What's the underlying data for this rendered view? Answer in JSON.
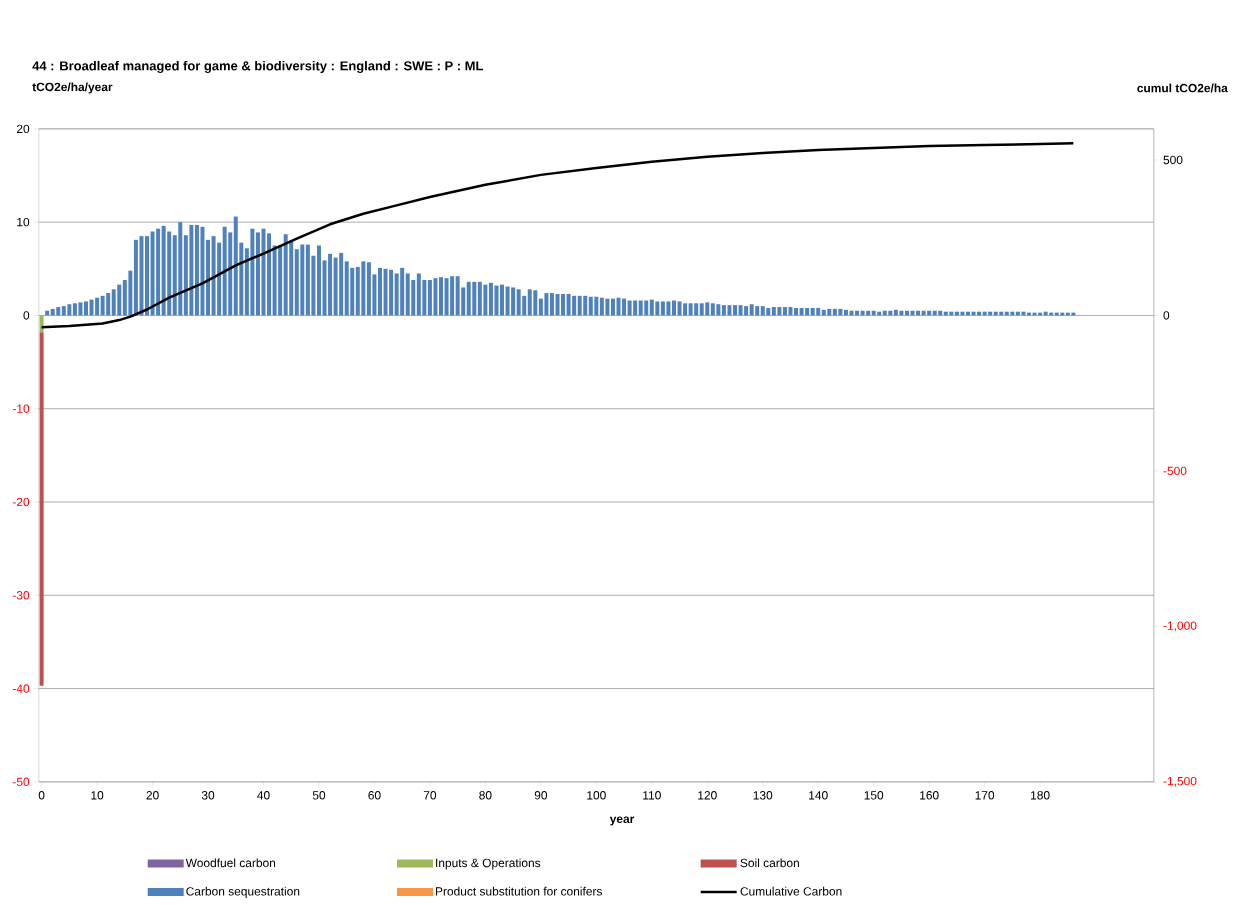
{
  "chart_data": {
    "type": "bar",
    "title": "44 : Broadleaf managed for game & biodiversity : England : SWE : P : ML",
    "xlabel": "year",
    "ylabel": "tCO2e/ha/year",
    "y2label": "cumul   tCO2e/ha",
    "xlim": [
      -0.5,
      200.5
    ],
    "xticks": [
      0,
      10,
      20,
      30,
      40,
      50,
      60,
      70,
      80,
      90,
      100,
      110,
      120,
      130,
      140,
      150,
      160,
      170,
      180
    ],
    "ylim": [
      -50,
      20
    ],
    "yticks": [
      -50,
      -40,
      -30,
      -20,
      -10,
      0,
      10,
      20
    ],
    "y2lim": [
      -1500,
      600
    ],
    "y2ticks": [
      {
        "value": -1500,
        "label": "-1,500"
      },
      {
        "value": -1000,
        "label": "-1,000"
      },
      -500,
      0,
      500
    ],
    "stacked": true,
    "grid": "y",
    "legend": "bottom",
    "series": [
      {
        "name": "Woodfuel carbon",
        "color": "#8064a2",
        "x": [
          0
        ],
        "values": [
          0
        ]
      },
      {
        "name": "Inputs & Operations",
        "color": "#9bbb59",
        "x": [
          0
        ],
        "values": [
          -1.8
        ]
      },
      {
        "name": "Soil carbon",
        "color": "#c0504d",
        "x": [
          0
        ],
        "values": [
          -37.9
        ]
      },
      {
        "name": "Carbon sequestration",
        "color": "#4f81bd",
        "x": [
          1,
          2,
          3,
          4,
          5,
          6,
          7,
          8,
          9,
          10,
          11,
          12,
          13,
          14,
          15,
          16,
          17,
          18,
          19,
          20,
          21,
          22,
          23,
          24,
          25,
          26,
          27,
          28,
          29,
          30,
          31,
          32,
          33,
          34,
          35,
          36,
          37,
          38,
          39,
          40,
          41,
          42,
          43,
          44,
          45,
          46,
          47,
          48,
          49,
          50,
          51,
          52,
          53,
          54,
          55,
          56,
          57,
          58,
          59,
          60,
          61,
          62,
          63,
          64,
          65,
          66,
          67,
          68,
          69,
          70,
          71,
          72,
          73,
          74,
          75,
          76,
          77,
          78,
          79,
          80,
          81,
          82,
          83,
          84,
          85,
          86,
          87,
          88,
          89,
          90,
          91,
          92,
          93,
          94,
          95,
          96,
          97,
          98,
          99,
          100,
          101,
          102,
          103,
          104,
          105,
          106,
          107,
          108,
          109,
          110,
          111,
          112,
          113,
          114,
          115,
          116,
          117,
          118,
          119,
          120,
          121,
          122,
          123,
          124,
          125,
          126,
          127,
          128,
          129,
          130,
          131,
          132,
          133,
          134,
          135,
          136,
          137,
          138,
          139,
          140,
          141,
          142,
          143,
          144,
          145,
          146,
          147,
          148,
          149,
          150,
          151,
          152,
          153,
          154,
          155,
          156,
          157,
          158,
          159,
          160,
          161,
          162,
          163,
          164,
          165,
          166,
          167,
          168,
          169,
          170,
          171,
          172,
          173,
          174,
          175,
          176,
          177,
          178,
          179,
          180,
          181,
          182,
          183,
          184,
          185,
          186
        ],
        "values": [
          0.5,
          0.7,
          0.9,
          1.0,
          1.2,
          1.3,
          1.4,
          1.5,
          1.7,
          1.9,
          2.1,
          2.4,
          2.8,
          3.3,
          3.8,
          4.8,
          8.1,
          8.5,
          8.5,
          9.0,
          9.3,
          9.6,
          9.0,
          8.6,
          10.0,
          8.6,
          9.7,
          9.7,
          9.5,
          8.1,
          8.5,
          7.8,
          9.5,
          8.9,
          10.6,
          7.8,
          7.2,
          9.3,
          8.9,
          9.3,
          8.8,
          7.5,
          7.5,
          8.7,
          8.0,
          7.1,
          7.6,
          7.6,
          6.4,
          7.5,
          5.9,
          6.6,
          6.2,
          6.7,
          5.8,
          5.1,
          5.2,
          5.8,
          5.7,
          4.4,
          5.1,
          5.0,
          4.9,
          4.5,
          5.1,
          4.5,
          3.8,
          4.5,
          3.8,
          3.8,
          4.0,
          4.1,
          4.0,
          4.2,
          4.2,
          3.0,
          3.6,
          3.6,
          3.6,
          3.3,
          3.5,
          3.2,
          3.3,
          3.1,
          3.0,
          2.8,
          2.1,
          2.8,
          2.7,
          1.8,
          2.4,
          2.4,
          2.3,
          2.3,
          2.3,
          2.1,
          2.1,
          2.1,
          2.0,
          2.0,
          1.9,
          1.8,
          1.8,
          1.9,
          1.8,
          1.6,
          1.6,
          1.6,
          1.6,
          1.7,
          1.5,
          1.5,
          1.5,
          1.6,
          1.5,
          1.3,
          1.3,
          1.3,
          1.3,
          1.4,
          1.3,
          1.2,
          1.1,
          1.1,
          1.1,
          1.1,
          1.0,
          1.2,
          1.0,
          1.0,
          0.8,
          0.9,
          0.9,
          0.9,
          0.9,
          0.8,
          0.8,
          0.8,
          0.8,
          0.8,
          0.6,
          0.7,
          0.7,
          0.7,
          0.6,
          0.5,
          0.5,
          0.5,
          0.5,
          0.5,
          0.4,
          0.5,
          0.5,
          0.6,
          0.5,
          0.5,
          0.5,
          0.5,
          0.5,
          0.5,
          0.5,
          0.5,
          0.4,
          0.4,
          0.4,
          0.4,
          0.4,
          0.4,
          0.4,
          0.4,
          0.4,
          0.4,
          0.4,
          0.4,
          0.4,
          0.4,
          0.4,
          0.3,
          0.3,
          0.3,
          0.4,
          0.3,
          0.3,
          0.3,
          0.3,
          0.3
        ]
      },
      {
        "name": "Product substitution for conifers",
        "color": "#f79646",
        "x": [
          0
        ],
        "values": [
          0
        ]
      },
      {
        "name": "Cumulative Carbon",
        "color": "#000000",
        "type": "line",
        "axis": "y2",
        "x": [
          0,
          5,
          11,
          14,
          16,
          19,
          23,
          29,
          35,
          40,
          46,
          52,
          58,
          64,
          70,
          80,
          90,
          100,
          110,
          120,
          130,
          140,
          150,
          160,
          170,
          180,
          186
        ],
        "values": [
          -38,
          -34,
          -26,
          -15,
          -4,
          19,
          57,
          103,
          161,
          199,
          247,
          293,
          327,
          354,
          381,
          420,
          452,
          474,
          494,
          510,
          522,
          532,
          538,
          545,
          548,
          551,
          554
        ]
      }
    ]
  }
}
